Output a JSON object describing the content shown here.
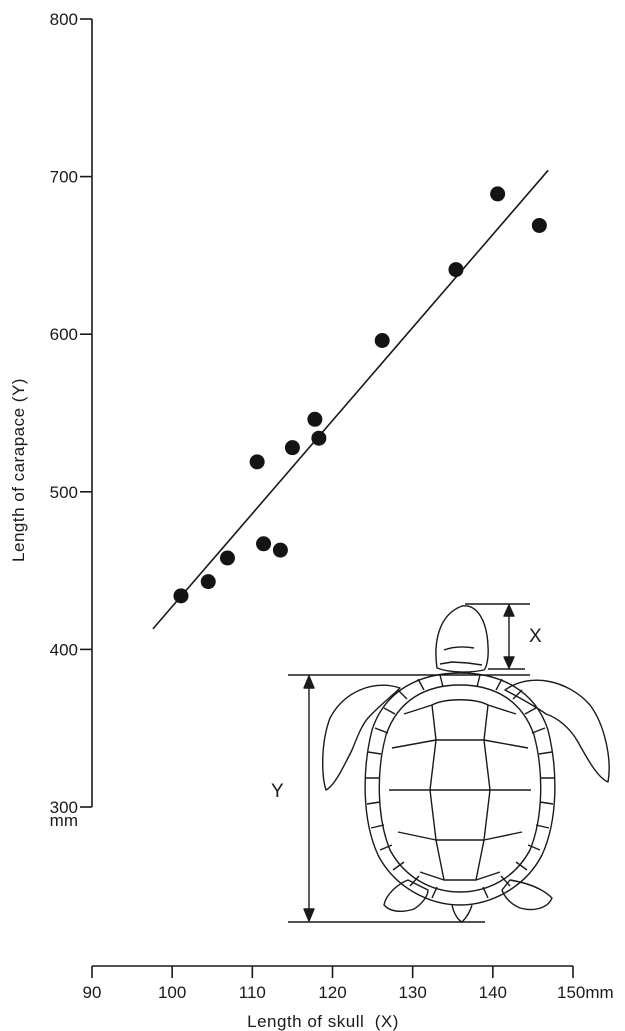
{
  "chart_data": {
    "type": "scatter",
    "xlabel": "Length of skull  (X)",
    "ylabel": "Length of carapace (Y)",
    "xlim": [
      90,
      150
    ],
    "ylim": [
      300,
      800
    ],
    "x_ticks": [
      {
        "value": 90,
        "label": "90"
      },
      {
        "value": 100,
        "label": "100"
      },
      {
        "value": 110,
        "label": "110"
      },
      {
        "value": 120,
        "label": "120"
      },
      {
        "value": 130,
        "label": "130"
      },
      {
        "value": 140,
        "label": "140"
      },
      {
        "value": 150,
        "label": "150mm"
      }
    ],
    "y_ticks": [
      {
        "value": 300,
        "label": "300",
        "unit": "mm"
      },
      {
        "value": 400,
        "label": "400"
      },
      {
        "value": 500,
        "label": "500"
      },
      {
        "value": 600,
        "label": "600"
      },
      {
        "value": 700,
        "label": "700"
      },
      {
        "value": 800,
        "label": "800"
      }
    ],
    "points": [
      {
        "x": 101.1,
        "y": 434
      },
      {
        "x": 104.5,
        "y": 443
      },
      {
        "x": 106.9,
        "y": 458
      },
      {
        "x": 110.6,
        "y": 519
      },
      {
        "x": 111.4,
        "y": 467
      },
      {
        "x": 113.5,
        "y": 463
      },
      {
        "x": 115.0,
        "y": 528
      },
      {
        "x": 117.8,
        "y": 546
      },
      {
        "x": 118.3,
        "y": 534
      },
      {
        "x": 126.2,
        "y": 596
      },
      {
        "x": 135.4,
        "y": 641
      },
      {
        "x": 140.6,
        "y": 689
      },
      {
        "x": 145.8,
        "y": 669
      }
    ],
    "trend_line": {
      "x1": 97.6,
      "y1": 413,
      "x2": 146.9,
      "y2": 704
    },
    "grid": false,
    "legend": "none"
  },
  "inset": {
    "label_x": "X",
    "label_y": "Y"
  }
}
